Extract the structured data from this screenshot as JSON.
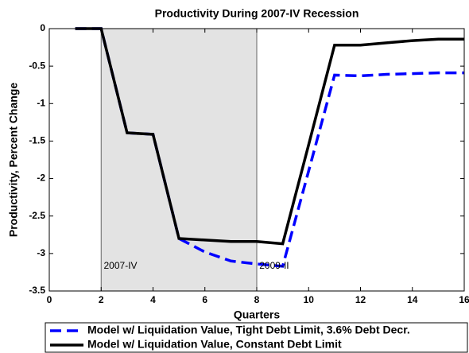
{
  "chart_data": {
    "type": "line",
    "title": "Productivity During 2007-IV Recession",
    "xlabel": "Quarters",
    "ylabel": "Productivity, Percent Change",
    "x": [
      1,
      2,
      3,
      4,
      5,
      6,
      7,
      8,
      9,
      10,
      11,
      12,
      13,
      14,
      15,
      16
    ],
    "series": [
      {
        "name": "Model w/ Liquidation Value, Tight Debt Limit, 3.6% Debt Decr.",
        "color": "#0000ff",
        "dash": true,
        "values": [
          0,
          0,
          -1.39,
          -1.41,
          -2.8,
          -2.98,
          -3.1,
          -3.14,
          -3.17,
          -1.9,
          -0.62,
          -0.63,
          -0.61,
          -0.6,
          -0.59,
          -0.59
        ]
      },
      {
        "name": "Model w/ Liquidation Value, Constant Debt Limit",
        "color": "#000000",
        "dash": false,
        "values": [
          0,
          0,
          -1.39,
          -1.41,
          -2.8,
          -2.82,
          -2.84,
          -2.84,
          -2.87,
          -1.55,
          -0.22,
          -0.22,
          -0.19,
          -0.16,
          -0.14,
          -0.14
        ]
      }
    ],
    "shade": [
      2,
      8
    ],
    "annotations": [
      {
        "text": "2007-IV",
        "x": 2.1,
        "y": -3.17
      },
      {
        "text": "2009-II",
        "x": 8.1,
        "y": -3.17
      }
    ],
    "xlim": [
      0,
      16
    ],
    "xticks": [
      0,
      2,
      4,
      6,
      8,
      10,
      12,
      14,
      16
    ],
    "ylim": [
      -3.5,
      0
    ],
    "yticks": [
      -3.5,
      -3,
      -2.5,
      -2,
      -1.5,
      -1,
      -0.5,
      0
    ],
    "legend": "bottom"
  }
}
